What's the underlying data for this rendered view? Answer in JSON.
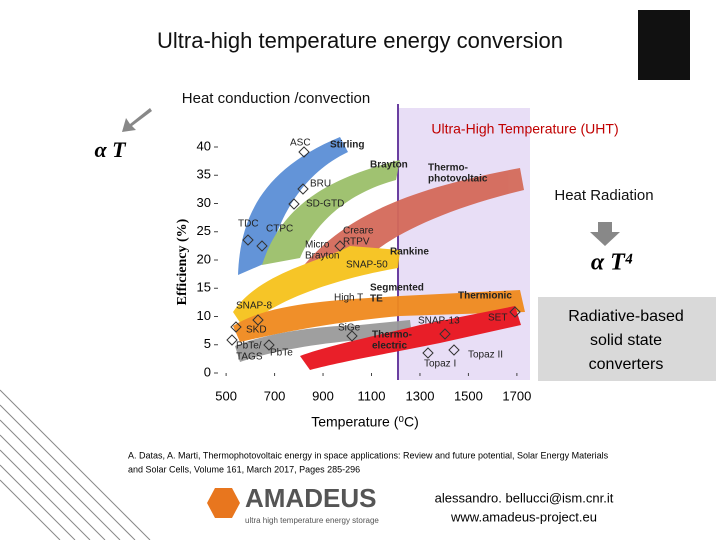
{
  "title": "Ultra-high temperature energy conversion",
  "notes": {
    "conduction": "Heat conduction /convection",
    "alpha_t": "α T",
    "uht": "Ultra-High Temperature (UHT)",
    "radiation": "Heat Radiation",
    "alpha_t4": "α T⁴",
    "radiative": [
      "Radiative-based",
      "solid state",
      "converters"
    ]
  },
  "chart_data": {
    "type": "band",
    "ylabel": "Efficiency (%)",
    "xlabel": "Temperature (⁰C)",
    "xlim": [
      450,
      1750
    ],
    "xticks": [
      500,
      700,
      900,
      1100,
      1300,
      1500,
      1700
    ],
    "ylim": [
      0,
      40
    ],
    "yticks": [
      0,
      5,
      10,
      15,
      20,
      25,
      30,
      35,
      40
    ],
    "labels": [
      [
        "ASC"
      ],
      [
        "Stirling"
      ],
      [
        "Brayton"
      ],
      [
        "BRU"
      ],
      [
        "SD-GTD"
      ],
      [
        "TDC"
      ],
      [
        "CTPC"
      ],
      [
        "Micro",
        "Brayton"
      ],
      [
        "Creare",
        "RTPV"
      ],
      [
        "Rankine"
      ],
      [
        "SNAP-50"
      ],
      [
        "Thermo-",
        "photovoltaic"
      ],
      [
        "Segmented",
        "TE"
      ],
      [
        "High T"
      ],
      [
        "SNAP-8"
      ],
      [
        "Thermionic"
      ],
      [
        "SNAP-13"
      ],
      [
        "SET"
      ],
      [
        "SiGe"
      ],
      [
        "SKD"
      ],
      [
        "PbTe/",
        "TAGS"
      ],
      [
        "PbTe"
      ],
      [
        "Thermo-",
        "electric"
      ],
      [
        "Topaz I"
      ],
      [
        "Topaz II"
      ]
    ]
  },
  "citation": [
    "A. Datas, A. Marti, Thermophotovoltaic energy in space applications: Review and future potential, Solar Energy Materials",
    "and Solar Cells, Volume 161, March 2017, Pages 285-296"
  ],
  "logo": {
    "name": "AMADEUS",
    "tagline": "ultra high temperature energy storage"
  },
  "contact": [
    "alessandro. bellucci@ism.cnr.it",
    "www.amadeus-project.eu"
  ]
}
